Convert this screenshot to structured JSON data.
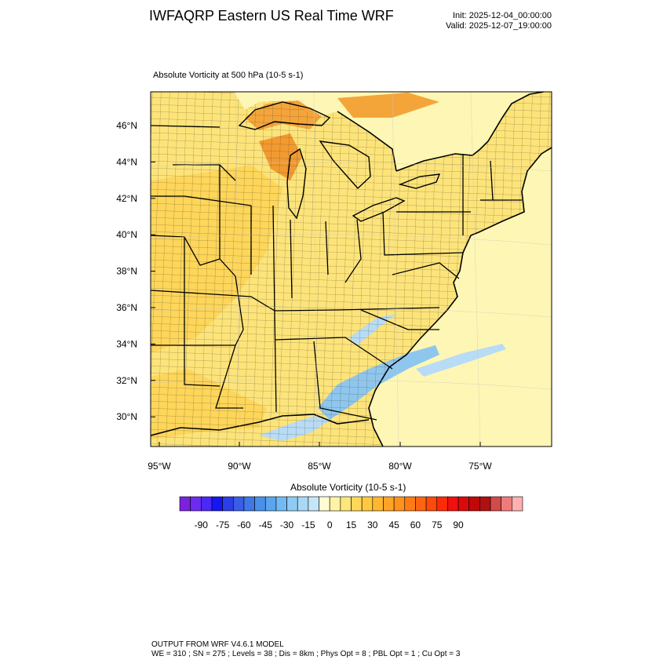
{
  "header": {
    "title": "IWFAQRP Eastern US Real Time WRF",
    "init": "Init: 2025-12-04_00:00:00",
    "valid": "Valid: 2025-12-07_19:00:00"
  },
  "map": {
    "subtitle": "Absolute Vorticity at 500 hPa   (10-5 s-1)",
    "lat_labels": [
      "46°N",
      "44°N",
      "42°N",
      "40°N",
      "38°N",
      "36°N",
      "34°N",
      "32°N",
      "30°N"
    ],
    "lon_labels": [
      "95°W",
      "90°W",
      "85°W",
      "80°W",
      "75°W"
    ],
    "colors": {
      "ocean": "#fef6b4",
      "land_base": "#fde47a",
      "land_warm": "#fdd65a",
      "strong": "#f4a53a",
      "lake_max": "#f29a30",
      "negative": "#b8dcf5",
      "negative_deep": "#8ec6ee"
    }
  },
  "colorbar": {
    "title": "Absolute Vorticity  (10-5 s-1)",
    "tick_labels": [
      "-90",
      "-75",
      "-60",
      "-45",
      "-30",
      "-15",
      "0",
      "15",
      "30",
      "45",
      "60",
      "75",
      "90"
    ],
    "colors": [
      "#7a22dc",
      "#6c2bf0",
      "#4b28f5",
      "#1616f0",
      "#2b3ee8",
      "#3a5ce6",
      "#3f78e6",
      "#4a90ea",
      "#5aa6ee",
      "#72bbf2",
      "#8ecbf3",
      "#a9d8f5",
      "#c5e6f8",
      "#fffbd3",
      "#fff3a6",
      "#ffe57a",
      "#ffd85a",
      "#ffc840",
      "#ffb630",
      "#ffa424",
      "#ff921c",
      "#ff7c14",
      "#ff6410",
      "#ff480c",
      "#ff2a08",
      "#f01010",
      "#d80a0a",
      "#c00808",
      "#b01010",
      "#d24a4a",
      "#ec7c7c",
      "#ffb0b0"
    ]
  },
  "footer": {
    "line1": "OUTPUT FROM WRF V4.6.1 MODEL",
    "line2": "WE = 310 ; SN = 275 ; Levels = 38 ; Dis = 8km ; Phys Opt = 8 ; PBL Opt = 1 ; Cu Opt = 3"
  }
}
